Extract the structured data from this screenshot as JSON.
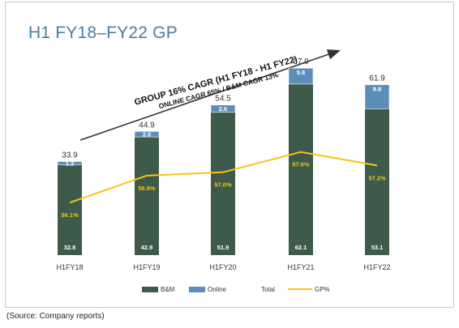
{
  "title": "H1 FY18–FY22 GP",
  "source": "(Source: Company reports)",
  "annotation": {
    "line1": "GROUP 16% CAGR (H1 FY18 - H1 FY22)",
    "line2": "ONLINE CAGR 65% / B&M CAGR 13%"
  },
  "colors": {
    "bm": "#3d5a4a",
    "online": "#5b8db8",
    "gp": "#f5c518",
    "title": "#4a7e9e"
  },
  "chart_data": {
    "type": "bar",
    "stacked": true,
    "categories": [
      "H1FY18",
      "H1FY19",
      "H1FY20",
      "H1FY21",
      "H1FY22"
    ],
    "series": [
      {
        "name": "B&M",
        "values": [
          32.8,
          42.9,
          51.9,
          62.1,
          53.1
        ]
      },
      {
        "name": "Online",
        "values": [
          1.2,
          2.0,
          2.6,
          5.8,
          8.8
        ]
      }
    ],
    "value_labels": {
      "bm": [
        "32.8",
        "42.9",
        "51.9",
        "62.1",
        "53.1"
      ],
      "online": [
        "1.2",
        "2.0",
        "2.6",
        "5.8",
        "8.8"
      ]
    },
    "totals": [
      33.9,
      44.9,
      54.5,
      67.9,
      61.9
    ],
    "total_labels": [
      "33.9",
      "44.9",
      "54.5",
      "67.9",
      "61.9"
    ],
    "line_series": {
      "name": "GP%",
      "values": [
        56.1,
        56.9,
        57.0,
        57.6,
        57.2
      ],
      "labels": [
        "56.1%",
        "56.9%",
        "57.0%",
        "57.6%",
        "57.2%"
      ]
    },
    "legend": [
      "B&M",
      "Online",
      "Total",
      "GP%"
    ],
    "legend_position": "bottom",
    "ylim": [
      0,
      80
    ],
    "gp_ylim": [
      55.6,
      58.0
    ],
    "grid": false
  }
}
